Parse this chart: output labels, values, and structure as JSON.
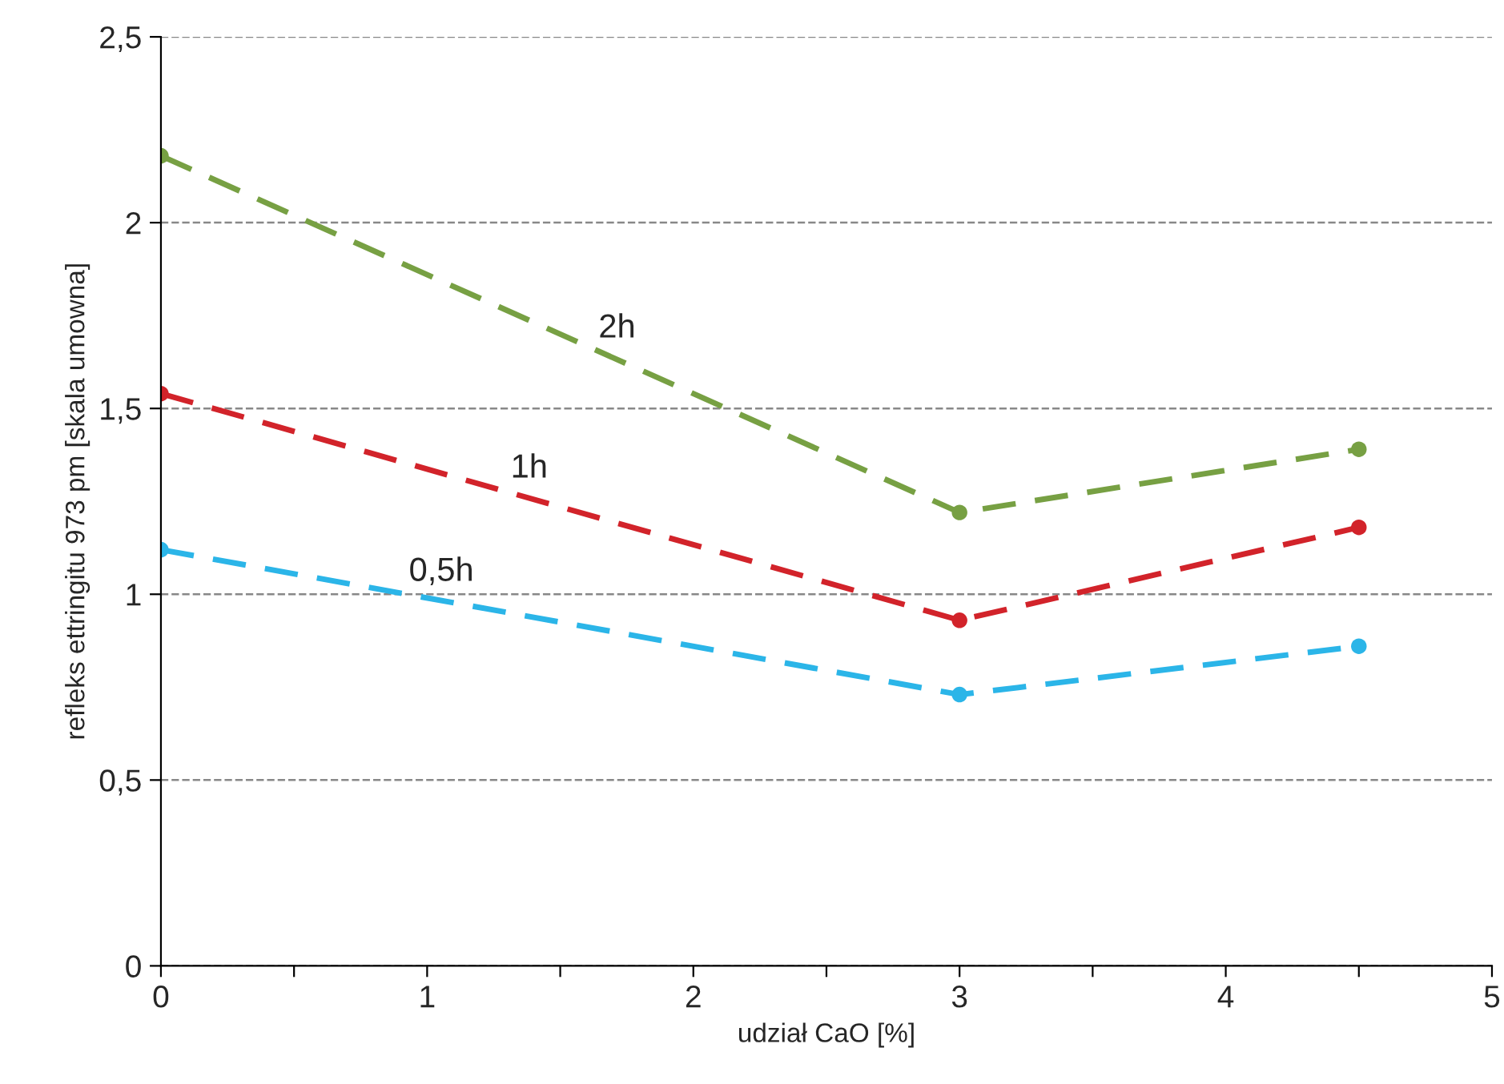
{
  "chart_data": {
    "type": "line",
    "xlabel": "udział CaO [%]",
    "ylabel": "refleks ettringitu 973 pm [skala umowna]",
    "x": [
      0,
      3,
      4.5
    ],
    "series": [
      {
        "name": "2h",
        "color": "#77a043",
        "values": [
          2.18,
          1.22,
          1.39
        ]
      },
      {
        "name": "1h",
        "color": "#d2232a",
        "values": [
          1.54,
          0.93,
          1.18
        ]
      },
      {
        "name": "0,5h",
        "color": "#2bb5e8",
        "values": [
          1.12,
          0.73,
          0.86
        ]
      }
    ],
    "xlim": [
      0,
      5
    ],
    "ylim": [
      0,
      2.5
    ],
    "xticks": [
      0,
      {
        "value": 0.5,
        "label": null
      },
      1,
      {
        "value": 1.5,
        "label": null
      },
      2,
      {
        "value": 2.5,
        "label": null
      },
      3,
      {
        "value": 3.5,
        "label": null
      },
      4,
      {
        "value": 4.5,
        "label": null
      },
      5
    ],
    "yticks": [
      0,
      {
        "value": 0.5,
        "label": "0,5"
      },
      1,
      {
        "value": 1.5,
        "label": "1,5"
      },
      2,
      {
        "value": 2.5,
        "label": "2,5"
      }
    ],
    "grid": "y",
    "legend": false,
    "marker": "circle",
    "line_style": "dashed"
  }
}
